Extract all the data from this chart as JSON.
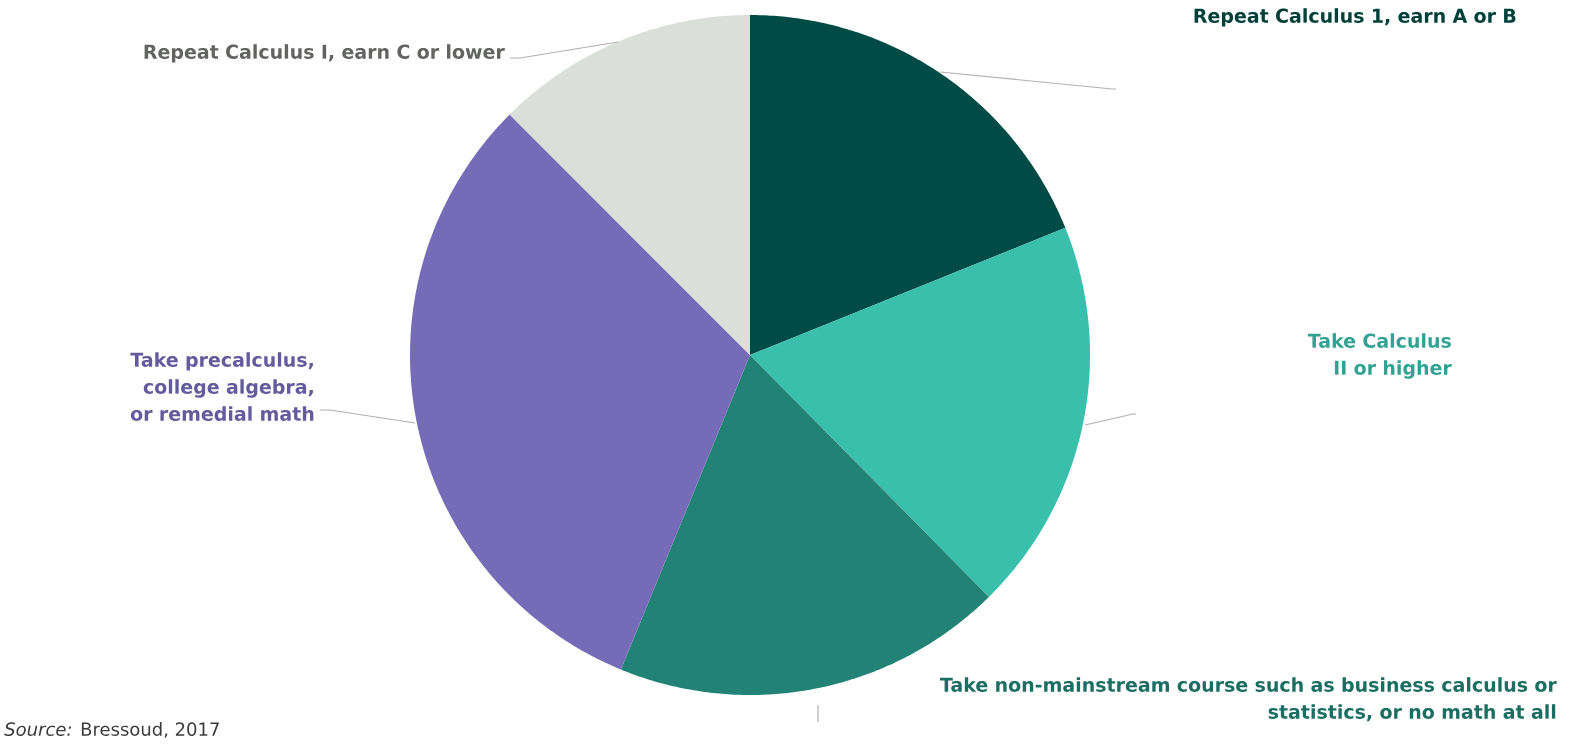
{
  "chart_data": {
    "type": "pie",
    "categories": [
      "Repeat Calculus 1, earn A or B",
      "Take Calculus II or higher",
      "Take non-mainstream course such as business calculus or statistics, or no math at all",
      "Take precalculus, college algebra, or remedial math",
      "Repeat Calculus I, earn C or lower"
    ],
    "values": [
      18.9,
      18.7,
      18.6,
      31.3,
      12.5
    ],
    "colors": [
      "#004b45",
      "#3bbfad",
      "#218275",
      "#756bb6",
      "#dadfd9"
    ],
    "legend": false,
    "annotations": [
      "*Source:* Bressoud, 2017"
    ]
  }
}
